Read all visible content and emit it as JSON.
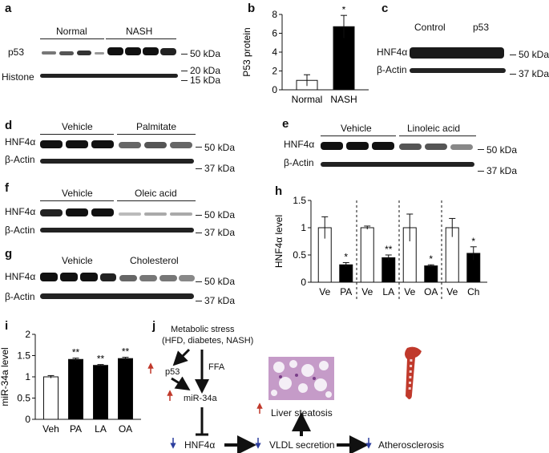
{
  "panel_a": {
    "letter": "a",
    "groups": [
      "Normal",
      "NASH"
    ],
    "rows": [
      "p53",
      "Histone"
    ],
    "markers": [
      "50 kDa",
      "20 kDa",
      "15 kDa"
    ]
  },
  "panel_b": {
    "letter": "b",
    "significance": "*"
  },
  "panel_c": {
    "letter": "c",
    "groups": [
      "Control",
      "p53"
    ],
    "rows": [
      "HNF4α",
      "β-Actin"
    ],
    "markers": [
      "50 kDa",
      "37 kDa"
    ]
  },
  "panel_d": {
    "letter": "d",
    "groups": [
      "Vehicle",
      "Palmitate"
    ],
    "rows": [
      "HNF4α",
      "β-Actin"
    ],
    "markers": [
      "50 kDa",
      "37 kDa"
    ]
  },
  "panel_e": {
    "letter": "e",
    "groups": [
      "Vehicle",
      "Linoleic acid"
    ],
    "rows": [
      "HNF4α",
      "β-Actin"
    ],
    "markers": [
      "50 kDa",
      "37 kDa"
    ]
  },
  "panel_f": {
    "letter": "f",
    "groups": [
      "Vehicle",
      "Oleic acid"
    ],
    "rows": [
      "HNF4α",
      "β-Actin"
    ],
    "markers": [
      "50 kDa",
      "37 kDa"
    ]
  },
  "panel_g": {
    "letter": "g",
    "groups": [
      "Vehicle",
      "Cholesterol"
    ],
    "rows": [
      "HNF4α",
      "β-Actin"
    ],
    "markers": [
      "50 kDa",
      "37 kDa"
    ]
  },
  "panel_h": {
    "letter": "h",
    "significance": [
      "*",
      "**",
      "*",
      "*"
    ]
  },
  "panel_i": {
    "letter": "i",
    "significance": [
      "**",
      "**",
      "**"
    ]
  },
  "panel_j": {
    "letter": "j",
    "stress_line1": "Metabolic stress",
    "stress_line2": "(HFD, diabetes, NASH)",
    "p53": "p53",
    "ffa": "FFA",
    "mir": "miR-34a",
    "hnf": "HNF4α",
    "vldl": "VLDL secretion",
    "athero": "Atherosclerosis",
    "steatosis": "Liver steatosis",
    "up_color": "#c0392b",
    "down_color": "#2c3e9e"
  },
  "chart_data": [
    {
      "type": "bar",
      "panel": "b",
      "categories": [
        "Normal",
        "NASH"
      ],
      "values": [
        1.0,
        6.7
      ],
      "errors": [
        0.6,
        1.2
      ],
      "fills": [
        "#ffffff",
        "#000000"
      ],
      "ylabel": "P53 protein",
      "ylim": [
        0,
        8
      ],
      "yticks": [
        0,
        2,
        4,
        6,
        8
      ]
    },
    {
      "type": "bar",
      "panel": "h",
      "categories": [
        "Ve",
        "PA",
        "Ve",
        "LA",
        "Ve",
        "OA",
        "Ve",
        "Ch"
      ],
      "values": [
        1.0,
        0.32,
        1.0,
        0.45,
        1.0,
        0.3,
        1.0,
        0.53
      ],
      "errors": [
        0.2,
        0.04,
        0.03,
        0.05,
        0.25,
        0.02,
        0.17,
        0.12
      ],
      "fills": [
        "#ffffff",
        "#000000",
        "#ffffff",
        "#000000",
        "#ffffff",
        "#000000",
        "#ffffff",
        "#000000"
      ],
      "ylabel": "HNF4α level",
      "ylim": [
        0,
        1.5
      ],
      "yticks": [
        0,
        0.5,
        1,
        1.5
      ]
    },
    {
      "type": "bar",
      "panel": "i",
      "categories": [
        "Veh",
        "PA",
        "LA",
        "OA"
      ],
      "values": [
        1.0,
        1.41,
        1.27,
        1.43
      ],
      "errors": [
        0.03,
        0.03,
        0.02,
        0.03
      ],
      "fills": [
        "#ffffff",
        "#000000",
        "#000000",
        "#000000"
      ],
      "ylabel": "miR-34a level",
      "ylim": [
        0,
        2
      ],
      "yticks": [
        0,
        0.5,
        1,
        1.5,
        2
      ]
    }
  ]
}
